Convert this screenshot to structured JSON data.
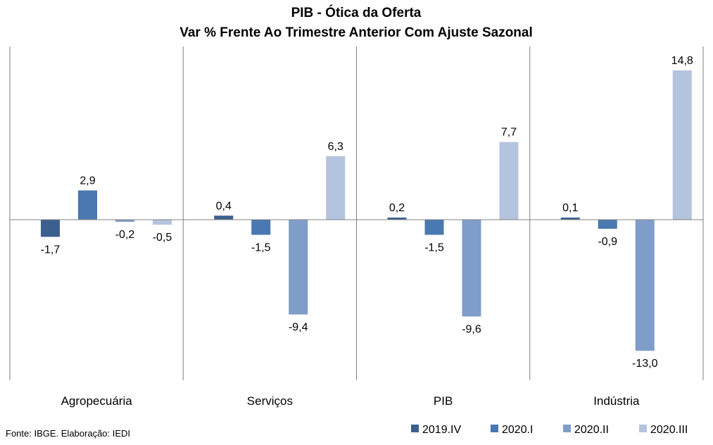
{
  "chart_data": {
    "type": "bar",
    "title": "PIB - Ótica da Oferta",
    "subtitle": "Var % Frente Ao Trimestre Anterior Com Ajuste Sazonal",
    "categories": [
      "Agropecuária",
      "Serviços",
      "PIB",
      "Indústria"
    ],
    "series": [
      {
        "name": "2019.IV",
        "color": "#3b5f8f",
        "values": [
          -1.7,
          0.4,
          0.2,
          0.1
        ],
        "labels": [
          "-1,7",
          "0,4",
          "0,2",
          "0,1"
        ]
      },
      {
        "name": "2020.I",
        "color": "#4a78b0",
        "values": [
          2.9,
          -1.5,
          -1.5,
          -0.9
        ],
        "labels": [
          "2,9",
          "-1,5",
          "-1,5",
          "-0,9"
        ]
      },
      {
        "name": "2020.II",
        "color": "#7f9dc9",
        "values": [
          -0.2,
          -9.4,
          -9.6,
          -13.0
        ],
        "labels": [
          "-0,2",
          "-9,4",
          "-9,6",
          "-13,0"
        ]
      },
      {
        "name": "2020.III",
        "color": "#b4c3de",
        "values": [
          -0.5,
          6.3,
          7.7,
          14.8
        ],
        "labels": [
          "-0,5",
          "6,3",
          "7,7",
          "14,8"
        ]
      }
    ],
    "ylim": [
      -15.6,
      17.2
    ],
    "legend_position": "bottom-right",
    "grid": false
  },
  "source": "Fonte: IBGE. Elaboração: IEDI"
}
